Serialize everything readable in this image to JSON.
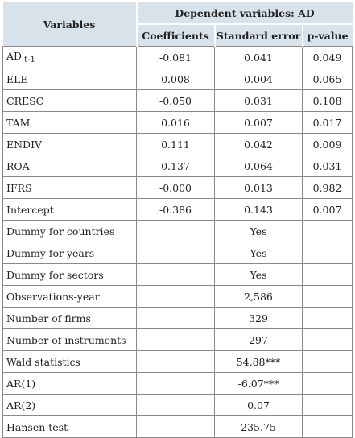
{
  "header": {
    "variables_label": "Variables",
    "dependent_label": "Dependent variables: AD",
    "columns": [
      "Coefficients",
      "Standard error",
      "p-value"
    ]
  },
  "rows": [
    {
      "label": "AD",
      "sub": "t-1",
      "coef": "-0.081",
      "se": "0.041",
      "p": "0.049"
    },
    {
      "label": "ELE",
      "coef": "0.008",
      "se": "0.004",
      "p": "0.065"
    },
    {
      "label": "CRESC",
      "coef": "-0.050",
      "se": "0.031",
      "p": "0.108"
    },
    {
      "label": "TAM",
      "coef": "0.016",
      "se": "0.007",
      "p": "0.017"
    },
    {
      "label": "ENDIV",
      "coef": "0.111",
      "se": "0.042",
      "p": "0.009"
    },
    {
      "label": "ROA",
      "coef": "0.137",
      "se": "0.064",
      "p": "0.031"
    },
    {
      "label": "IFRS",
      "coef": "-0.000",
      "se": "0.013",
      "p": "0.982"
    },
    {
      "label": "Intercept",
      "coef": "-0.386",
      "se": "0.143",
      "p": "0.007"
    }
  ],
  "summary": [
    {
      "label": "Dummy for countries",
      "value": "Yes"
    },
    {
      "label": "Dummy for years",
      "value": "Yes"
    },
    {
      "label": "Dummy for sectors",
      "value": "Yes"
    },
    {
      "label": "Observations-year",
      "value": "2,586"
    },
    {
      "label": "Number of firms",
      "value": "329"
    },
    {
      "label": "Number of instruments",
      "value": "297"
    },
    {
      "label": "Wald statistics",
      "value": "54.88***"
    },
    {
      "label": "AR(1)",
      "value": "-6.07***"
    },
    {
      "label": "AR(2)",
      "value": "0.07"
    },
    {
      "label": "Hansen test",
      "value": "235.75"
    }
  ]
}
